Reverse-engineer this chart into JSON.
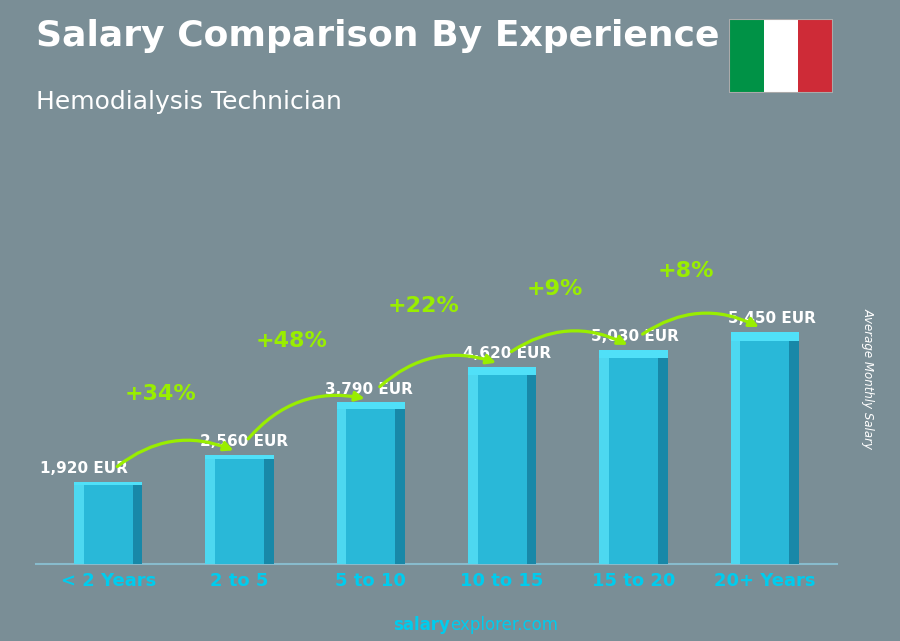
{
  "title": "Salary Comparison By Experience",
  "subtitle": "Hemodialysis Technician",
  "categories": [
    "< 2 Years",
    "2 to 5",
    "5 to 10",
    "10 to 15",
    "15 to 20",
    "20+ Years"
  ],
  "values": [
    1920,
    2560,
    3790,
    4620,
    5030,
    5450
  ],
  "labels": [
    "1,920 EUR",
    "2,560 EUR",
    "3,790 EUR",
    "4,620 EUR",
    "5,030 EUR",
    "5,450 EUR"
  ],
  "pct_changes": [
    "+34%",
    "+48%",
    "+22%",
    "+9%",
    "+8%"
  ],
  "bar_main": "#29b8d8",
  "bar_left": "#4dd8f0",
  "bar_right": "#1888a8",
  "bar_top": "#50e0f8",
  "bg_color": "#7a8e96",
  "white": "#ffffff",
  "green": "#99ee00",
  "xtick_color": "#00ccee",
  "ylabel_text": "Average Monthly Salary",
  "footer_salary_bold": "salary",
  "footer_rest": "explorer.com",
  "title_fontsize": 26,
  "subtitle_fontsize": 18,
  "label_fontsize": 11,
  "pct_fontsize": 16,
  "xtick_fontsize": 13,
  "footer_fontsize": 12
}
